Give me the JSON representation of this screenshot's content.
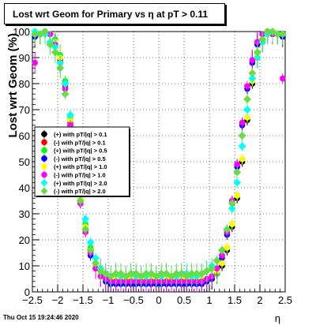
{
  "chart_data": {
    "type": "scatter",
    "title": "Lost wrt Geom for Primary vs    η at pT > 0.11",
    "xlabel": "η",
    "ylabel": "Lost wrt Geom (%)",
    "xlim": [
      -2.5,
      2.5
    ],
    "ylim": [
      0,
      100
    ],
    "xticks": [
      -2.5,
      -2,
      -1.5,
      -1,
      -0.5,
      0,
      0.5,
      1,
      1.5,
      2,
      2.5
    ],
    "xtick_labels": [
      "−2.5",
      "−2",
      "−1.5",
      "−1",
      "−0.5",
      "0",
      "0.5",
      "1",
      "1.5",
      "2",
      "2.5"
    ],
    "yticks": [
      0,
      10,
      20,
      30,
      40,
      50,
      60,
      70,
      80,
      90,
      100
    ],
    "ytick_labels": [
      "0",
      "10",
      "20",
      "30",
      "40",
      "50",
      "60",
      "70",
      "80",
      "90",
      "100"
    ],
    "grid": true,
    "legend_position": "left-middle",
    "x": [
      -2.45,
      -2.35,
      -2.25,
      -2.15,
      -2.05,
      -1.95,
      -1.85,
      -1.75,
      -1.65,
      -1.55,
      -1.45,
      -1.35,
      -1.25,
      -1.15,
      -1.05,
      -0.95,
      -0.85,
      -0.75,
      -0.65,
      -0.55,
      -0.45,
      -0.35,
      -0.25,
      -0.15,
      -0.05,
      0.05,
      0.15,
      0.25,
      0.35,
      0.45,
      0.55,
      0.65,
      0.75,
      0.85,
      0.95,
      1.05,
      1.15,
      1.25,
      1.35,
      1.45,
      1.55,
      1.65,
      1.75,
      1.85,
      1.95,
      2.05,
      2.15,
      2.25,
      2.35,
      2.45
    ],
    "series": [
      {
        "name": "(+) with pT/|q| > 0.1",
        "color": "#000000",
        "shape": "circle",
        "values": [
          99,
          99,
          100,
          99,
          96,
          90,
          80,
          66,
          50,
          36,
          25,
          16,
          10,
          7,
          5,
          4,
          4,
          4,
          4,
          4,
          4,
          4,
          4,
          4,
          4,
          4,
          4,
          4,
          4,
          4,
          4,
          4,
          4,
          4,
          4,
          5,
          7,
          10,
          16,
          25,
          36,
          50,
          66,
          80,
          90,
          96,
          99,
          100,
          99,
          99
        ]
      },
      {
        "name": "(-) with pT/|q| > 0.1",
        "color": "#ff0000",
        "shape": "circle",
        "values": [
          99,
          99,
          100,
          99,
          96,
          89,
          79,
          65,
          49,
          35,
          24,
          15,
          10,
          6,
          5,
          4,
          4,
          4,
          4,
          4,
          4,
          4,
          4,
          4,
          4,
          4,
          4,
          4,
          4,
          4,
          4,
          4,
          4,
          4,
          5,
          6,
          9,
          14,
          23,
          35,
          49,
          65,
          79,
          89,
          96,
          99,
          100,
          99,
          99,
          99
        ]
      },
      {
        "name": "(+) with pT/|q| > 0.5",
        "color": "#00ff00",
        "shape": "circle",
        "values": [
          99,
          99,
          100,
          99,
          97,
          91,
          81,
          67,
          51,
          37,
          26,
          17,
          11,
          7,
          5,
          4,
          4,
          4,
          4,
          4,
          4,
          4,
          4,
          4,
          4,
          4,
          4,
          4,
          4,
          4,
          4,
          4,
          4,
          4,
          4,
          5,
          7,
          11,
          17,
          26,
          37,
          51,
          67,
          81,
          91,
          97,
          99,
          100,
          99,
          99
        ]
      },
      {
        "name": "(-) with pT/|q| > 0.5",
        "color": "#0000ff",
        "shape": "circle",
        "values": [
          98,
          99,
          100,
          99,
          95,
          88,
          78,
          64,
          48,
          34,
          23,
          14,
          9,
          6,
          4,
          3,
          3,
          3,
          3,
          3,
          3,
          3,
          3,
          3,
          3,
          3,
          3,
          3,
          3,
          3,
          3,
          3,
          3,
          3,
          4,
          5,
          8,
          13,
          22,
          34,
          48,
          64,
          78,
          88,
          95,
          99,
          100,
          99,
          99,
          98
        ]
      },
      {
        "name": "(+) with pT/|q| > 1.0",
        "color": "#ffff00",
        "shape": "circle",
        "values": [
          99,
          99,
          100,
          99,
          96,
          90,
          80,
          66,
          50,
          36,
          25,
          16,
          10,
          7,
          5,
          5,
          5,
          5,
          5,
          5,
          5,
          5,
          5,
          5,
          5,
          5,
          5,
          5,
          5,
          5,
          5,
          5,
          5,
          5,
          5,
          6,
          8,
          11,
          17,
          26,
          37,
          51,
          67,
          81,
          91,
          97,
          99,
          100,
          99,
          99
        ]
      },
      {
        "name": "(-) with pT/|q| > 1.0",
        "color": "#ff00ff",
        "shape": "circle",
        "values": [
          88,
          99,
          100,
          99,
          95,
          88,
          78,
          64,
          48,
          34,
          23,
          15,
          9,
          6,
          5,
          4,
          4,
          4,
          4,
          4,
          4,
          4,
          4,
          4,
          4,
          4,
          4,
          4,
          4,
          4,
          4,
          4,
          4,
          4,
          5,
          6,
          9,
          14,
          23,
          35,
          49,
          65,
          79,
          89,
          96,
          99,
          100,
          99,
          99,
          82
        ]
      },
      {
        "name": "(+) with pT/|q| > 2.0",
        "color": "#00ffff",
        "shape": "diamond",
        "values": [
          100,
          99,
          99,
          96,
          94,
          88,
          80,
          68,
          52,
          40,
          28,
          19,
          13,
          9,
          7,
          6,
          7,
          6,
          6,
          7,
          6,
          6,
          6,
          7,
          6,
          6,
          7,
          6,
          6,
          7,
          7,
          6,
          6,
          7,
          8,
          10,
          12,
          16,
          24,
          32,
          42,
          56,
          70,
          82,
          90,
          96,
          99,
          100,
          99,
          99
        ]
      },
      {
        "name": "(-) with pT/|q| > 2.0",
        "color": "#66dd44",
        "shape": "diamond",
        "values": [
          99,
          99,
          100,
          95,
          92,
          86,
          76,
          62,
          47,
          35,
          24,
          16,
          11,
          8,
          7,
          6,
          7,
          7,
          6,
          7,
          7,
          6,
          7,
          7,
          6,
          7,
          7,
          6,
          7,
          7,
          6,
          7,
          7,
          7,
          8,
          9,
          12,
          16,
          24,
          34,
          46,
          60,
          74,
          84,
          92,
          97,
          100,
          100,
          99,
          99
        ]
      }
    ]
  },
  "footer": {
    "timestamp": "Thu Oct 15 19:24:46 2020"
  }
}
